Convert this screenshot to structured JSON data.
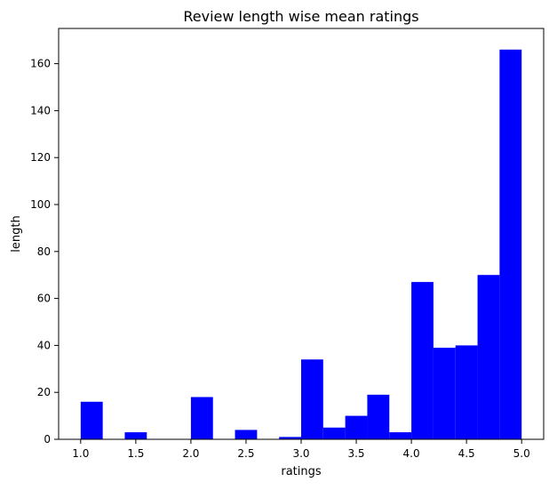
{
  "chart_data": {
    "type": "bar",
    "title": "Review length wise mean ratings",
    "xlabel": "ratings",
    "ylabel": "length",
    "xlim": [
      0.8,
      5.2
    ],
    "ylim": [
      0,
      175
    ],
    "xticks": [
      "1.0",
      "1.5",
      "2.0",
      "2.5",
      "3.0",
      "3.5",
      "4.0",
      "4.5",
      "5.0"
    ],
    "yticks": [
      "0",
      "20",
      "40",
      "60",
      "80",
      "100",
      "120",
      "140",
      "160"
    ],
    "bins": [
      {
        "start": 1.0,
        "end": 1.2,
        "value": 16
      },
      {
        "start": 1.2,
        "end": 1.4,
        "value": 0
      },
      {
        "start": 1.4,
        "end": 1.6,
        "value": 3
      },
      {
        "start": 1.6,
        "end": 1.8,
        "value": 0
      },
      {
        "start": 1.8,
        "end": 2.0,
        "value": 0
      },
      {
        "start": 2.0,
        "end": 2.2,
        "value": 18
      },
      {
        "start": 2.2,
        "end": 2.4,
        "value": 0
      },
      {
        "start": 2.4,
        "end": 2.6,
        "value": 4
      },
      {
        "start": 2.6,
        "end": 2.8,
        "value": 0
      },
      {
        "start": 2.8,
        "end": 3.0,
        "value": 1
      },
      {
        "start": 3.0,
        "end": 3.2,
        "value": 34
      },
      {
        "start": 3.2,
        "end": 3.4,
        "value": 5
      },
      {
        "start": 3.4,
        "end": 3.6,
        "value": 10
      },
      {
        "start": 3.6,
        "end": 3.8,
        "value": 19
      },
      {
        "start": 3.8,
        "end": 4.0,
        "value": 3
      },
      {
        "start": 4.0,
        "end": 4.2,
        "value": 67
      },
      {
        "start": 4.2,
        "end": 4.4,
        "value": 39
      },
      {
        "start": 4.4,
        "end": 4.6,
        "value": 40
      },
      {
        "start": 4.6,
        "end": 4.8,
        "value": 70
      },
      {
        "start": 4.8,
        "end": 5.0,
        "value": 166
      }
    ],
    "bar_color": "#0000ff",
    "grid": false,
    "legend": "none"
  }
}
